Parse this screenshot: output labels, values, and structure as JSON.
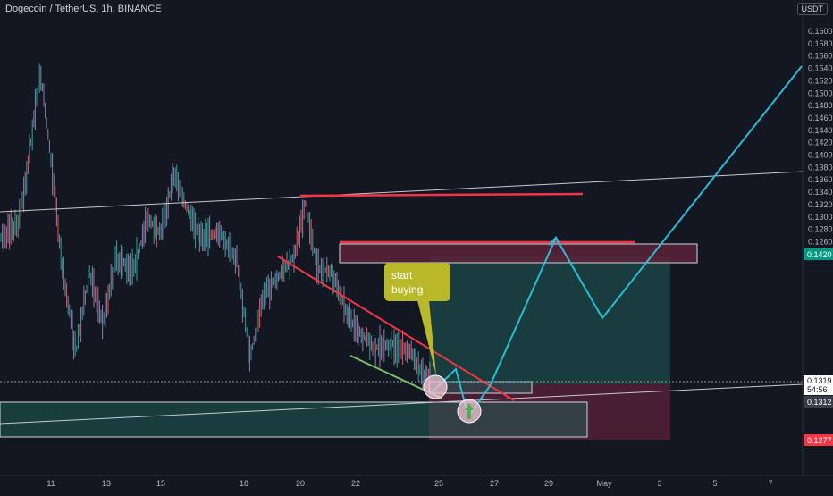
{
  "header": {
    "symbol": "Dogecoin / TetherUS, 1h, BINANCE",
    "currency": "USDT"
  },
  "callout": {
    "line1": "start",
    "line2": "buying"
  },
  "price_tags": {
    "level_1420": "0.1420",
    "current_price": "0.1319",
    "countdown": "54:56",
    "level_1312": "0.1312",
    "level_1277": "0.1277"
  },
  "colors": {
    "background": "#131722",
    "candle_up": "#26a69a",
    "candle_down": "#ef5350",
    "wick": "#8a7fa8",
    "resistance": "#f23645",
    "projection": "#2bbcd4",
    "trendline": "#c7c9d1",
    "long_profit": "#1f5c57",
    "long_loss": "#5c2238",
    "callout": "#b8b82a"
  },
  "chart_data": {
    "type": "candlestick",
    "title": "Dogecoin / TetherUS, 1h, BINANCE",
    "ylim": [
      0.1252,
      0.1628
    ],
    "y_ticks": [
      "0.1260",
      "0.1280",
      "0.1300",
      "0.1320",
      "0.1340",
      "0.1360",
      "0.1380",
      "0.1400",
      "0.1420",
      "0.1440",
      "0.1460",
      "0.1480",
      "0.1500",
      "0.1520",
      "0.1540",
      "0.1560",
      "0.1580",
      "0.1600"
    ],
    "x_ticks": [
      "11",
      "13",
      "15",
      "18",
      "20",
      "22",
      "25",
      "27",
      "29",
      "May",
      "3",
      "5",
      "7"
    ],
    "grid": false,
    "annotations": {
      "resistance_levels": [
        0.1468,
        0.1432
      ],
      "highlighted_price": 0.142,
      "current_price": 0.1319,
      "stop_loss": 0.1277,
      "entry": 0.1312,
      "callout": "start buying"
    }
  }
}
